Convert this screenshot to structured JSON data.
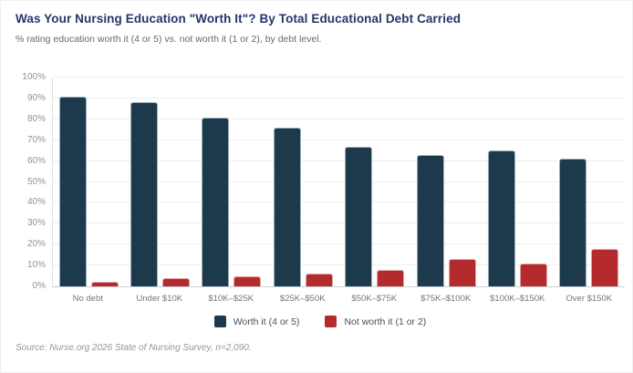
{
  "chart_data": {
    "type": "bar",
    "title": "Was Your Nursing Education \"Worth It\"? By Total Educational Debt Carried",
    "subtitle": "% rating education worth it (4 or 5) vs. not worth it (1 or 2), by debt level.",
    "categories": [
      "No debt",
      "Under $10K",
      "$10K–$25K",
      "$25K–$50K",
      "$50K–$75K",
      "$75K–$100K",
      "$100K–$150K",
      "Over $150K"
    ],
    "series": [
      {
        "name": "Worth it (4 or 5)",
        "color": "#1d3a4d",
        "values": [
          91,
          88,
          81,
          76,
          67,
          63,
          65,
          61
        ]
      },
      {
        "name": "Not worth it (1 or 2)",
        "color": "#b42a2d",
        "values": [
          2,
          4,
          5,
          6,
          8,
          13,
          11,
          18
        ]
      }
    ],
    "xlabel": "",
    "ylabel": "",
    "ylim": [
      0,
      100
    ],
    "yticks": [
      0,
      10,
      20,
      30,
      40,
      50,
      60,
      70,
      80,
      90,
      100
    ],
    "ytick_suffix": "%",
    "grid": true,
    "legend_position": "bottom"
  },
  "source_note": "Source: Nurse.org 2026 State of Nursing Survey, n=2,090.",
  "colors": {
    "title": "#28356b",
    "subtitle": "#5d6b76",
    "worth_it_bar": "#1d3a4d",
    "not_worth_it_bar": "#b42a2d",
    "gridline": "#ebedee",
    "axis": "#c9d0d5"
  }
}
